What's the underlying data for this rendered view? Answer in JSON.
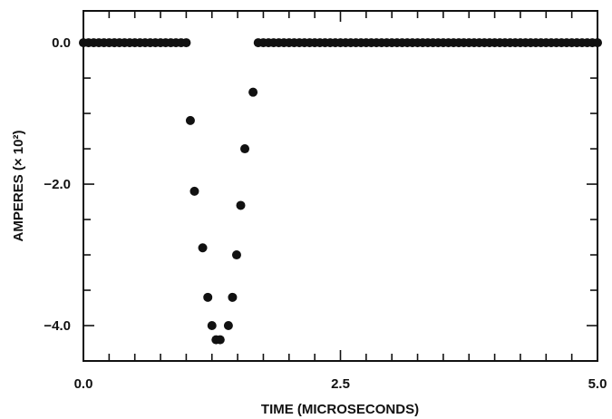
{
  "chart_data": {
    "type": "scatter",
    "title": "",
    "xlabel": "TIME (MICROSECONDS)",
    "ylabel": "AMPERES (× 10²)",
    "xlim": [
      0.0,
      5.0
    ],
    "ylim": [
      -4.5,
      0.45
    ],
    "xticks": [
      {
        "value": 0.0,
        "label": "0.0"
      },
      {
        "value": 2.5,
        "label": "2.5"
      },
      {
        "value": 5.0,
        "label": "5.0"
      }
    ],
    "yticks": [
      {
        "value": 0.0,
        "label": "0.0"
      },
      {
        "value": -2.0,
        "label": "−2.0"
      },
      {
        "value": -4.0,
        "label": "−4.0"
      }
    ],
    "x_minor_step": 0.25,
    "y_minor_step": 0.5,
    "grid": false,
    "legend": "none",
    "marker_color": "#111111",
    "series": [
      {
        "points": [
          [
            0.0,
            0.0
          ],
          [
            0.05,
            0.0
          ],
          [
            0.1,
            0.0
          ],
          [
            0.15,
            0.0
          ],
          [
            0.2,
            0.0
          ],
          [
            0.25,
            0.0
          ],
          [
            0.3,
            0.0
          ],
          [
            0.35,
            0.0
          ],
          [
            0.4,
            0.0
          ],
          [
            0.45,
            0.0
          ],
          [
            0.5,
            0.0
          ],
          [
            0.55,
            0.0
          ],
          [
            0.6,
            0.0
          ],
          [
            0.65,
            0.0
          ],
          [
            0.7,
            0.0
          ],
          [
            0.75,
            0.0
          ],
          [
            0.8,
            0.0
          ],
          [
            0.85,
            0.0
          ],
          [
            0.9,
            0.0
          ],
          [
            0.95,
            0.0
          ],
          [
            1.0,
            0.0
          ],
          [
            1.04,
            -1.1
          ],
          [
            1.08,
            -2.1
          ],
          [
            1.16,
            -2.9
          ],
          [
            1.21,
            -3.6
          ],
          [
            1.25,
            -4.0
          ],
          [
            1.29,
            -4.2
          ],
          [
            1.33,
            -4.2
          ],
          [
            1.41,
            -4.0
          ],
          [
            1.45,
            -3.6
          ],
          [
            1.49,
            -3.0
          ],
          [
            1.53,
            -2.3
          ],
          [
            1.57,
            -1.5
          ],
          [
            1.65,
            -0.7
          ],
          [
            1.7,
            0.0
          ],
          [
            1.75,
            0.0
          ],
          [
            1.8,
            0.0
          ],
          [
            1.85,
            0.0
          ],
          [
            1.9,
            0.0
          ],
          [
            1.95,
            0.0
          ],
          [
            2.0,
            0.0
          ],
          [
            2.05,
            0.0
          ],
          [
            2.1,
            0.0
          ],
          [
            2.15,
            0.0
          ],
          [
            2.2,
            0.0
          ],
          [
            2.25,
            0.0
          ],
          [
            2.3,
            0.0
          ],
          [
            2.35,
            0.0
          ],
          [
            2.4,
            0.0
          ],
          [
            2.45,
            0.0
          ],
          [
            2.5,
            0.0
          ],
          [
            2.55,
            0.0
          ],
          [
            2.6,
            0.0
          ],
          [
            2.65,
            0.0
          ],
          [
            2.7,
            0.0
          ],
          [
            2.75,
            0.0
          ],
          [
            2.8,
            0.0
          ],
          [
            2.85,
            0.0
          ],
          [
            2.9,
            0.0
          ],
          [
            2.95,
            0.0
          ],
          [
            3.0,
            0.0
          ],
          [
            3.05,
            0.0
          ],
          [
            3.1,
            0.0
          ],
          [
            3.15,
            0.0
          ],
          [
            3.2,
            0.0
          ],
          [
            3.25,
            0.0
          ],
          [
            3.3,
            0.0
          ],
          [
            3.35,
            0.0
          ],
          [
            3.4,
            0.0
          ],
          [
            3.45,
            0.0
          ],
          [
            3.5,
            0.0
          ],
          [
            3.55,
            0.0
          ],
          [
            3.6,
            0.0
          ],
          [
            3.65,
            0.0
          ],
          [
            3.7,
            0.0
          ],
          [
            3.75,
            0.0
          ],
          [
            3.8,
            0.0
          ],
          [
            3.85,
            0.0
          ],
          [
            3.9,
            0.0
          ],
          [
            3.95,
            0.0
          ],
          [
            4.0,
            0.0
          ],
          [
            4.05,
            0.0
          ],
          [
            4.1,
            0.0
          ],
          [
            4.15,
            0.0
          ],
          [
            4.2,
            0.0
          ],
          [
            4.25,
            0.0
          ],
          [
            4.3,
            0.0
          ],
          [
            4.35,
            0.0
          ],
          [
            4.4,
            0.0
          ],
          [
            4.45,
            0.0
          ],
          [
            4.5,
            0.0
          ],
          [
            4.55,
            0.0
          ],
          [
            4.6,
            0.0
          ],
          [
            4.65,
            0.0
          ],
          [
            4.7,
            0.0
          ],
          [
            4.75,
            0.0
          ],
          [
            4.8,
            0.0
          ],
          [
            4.85,
            0.0
          ],
          [
            4.9,
            0.0
          ],
          [
            4.95,
            0.0
          ],
          [
            5.0,
            0.0
          ]
        ]
      }
    ]
  }
}
